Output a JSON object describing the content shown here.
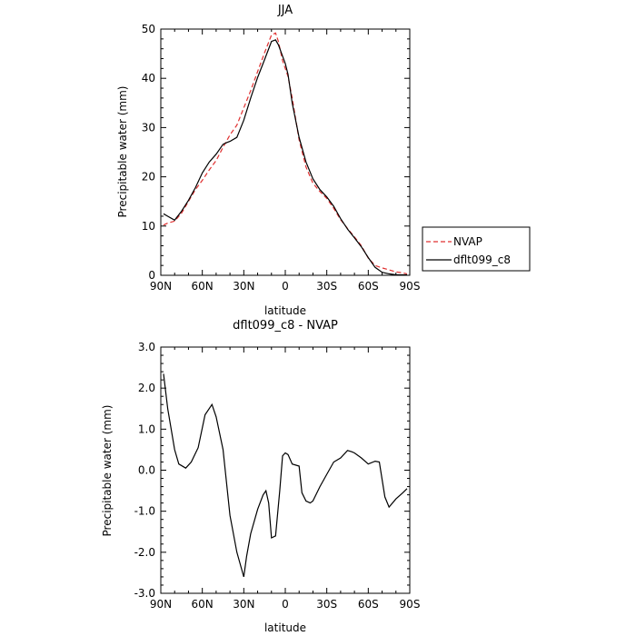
{
  "chart_data": [
    {
      "type": "line",
      "title": "JJA",
      "xlabel": "latitude",
      "ylabel": "Precipitable water (mm)",
      "xlim": [
        90,
        -90
      ],
      "ylim": [
        0,
        50
      ],
      "x_ticks": [
        90,
        60,
        30,
        0,
        -30,
        -60,
        -90
      ],
      "x_tick_labels": [
        "90N",
        "60N",
        "30N",
        "0",
        "30S",
        "60S",
        "90S"
      ],
      "y_ticks": [
        0,
        10,
        20,
        30,
        40,
        50
      ],
      "y_tick_labels": [
        "0",
        "10",
        "20",
        "30",
        "40",
        "50"
      ],
      "legend": "right",
      "series": [
        {
          "name": "NVAP",
          "color": "#e03030",
          "dash": "dashed",
          "x": [
            88,
            85,
            80,
            75,
            70,
            65,
            60,
            55,
            50,
            45,
            40,
            35,
            30,
            25,
            20,
            15,
            10,
            7,
            5,
            2,
            0,
            -2,
            -5,
            -10,
            -15,
            -20,
            -25,
            -30,
            -35,
            -40,
            -45,
            -50,
            -55,
            -60,
            -65,
            -70,
            -75,
            -80,
            -85,
            -88
          ],
          "y": [
            10.2,
            10.6,
            11.0,
            12.6,
            15.0,
            17.4,
            19.3,
            21.4,
            23.3,
            26.0,
            28.5,
            30.5,
            34.0,
            37.5,
            41.4,
            45.2,
            48.8,
            49.2,
            47.5,
            43.6,
            42.0,
            40.4,
            36.0,
            27.5,
            22.0,
            18.7,
            17.0,
            15.6,
            13.6,
            11.3,
            9.5,
            7.8,
            6.0,
            3.5,
            2.0,
            1.5,
            1.1,
            0.7,
            0.5,
            0.3
          ]
        },
        {
          "name": "dflt099_c8",
          "color": "#000000",
          "dash": "solid",
          "x": [
            88,
            85,
            80,
            75,
            70,
            65,
            60,
            55,
            50,
            45,
            42,
            40,
            35,
            30,
            25,
            20,
            15,
            10,
            7,
            5,
            2,
            0,
            -2,
            -5,
            -10,
            -15,
            -20,
            -25,
            -30,
            -35,
            -40,
            -45,
            -50,
            -55,
            -60,
            -65,
            -70,
            -75,
            -80,
            -85,
            -88
          ],
          "y": [
            12.5,
            12.0,
            11.2,
            13.0,
            15.2,
            17.8,
            20.8,
            23.0,
            24.6,
            26.6,
            27.0,
            27.2,
            28.0,
            31.5,
            36.0,
            40.2,
            43.8,
            47.5,
            47.8,
            46.8,
            44.5,
            43.0,
            40.8,
            35.0,
            28.0,
            23.0,
            19.6,
            17.4,
            15.9,
            14.0,
            11.5,
            9.4,
            7.6,
            5.8,
            3.6,
            1.6,
            0.6,
            0.3,
            0.1,
            0.1,
            0.1
          ]
        }
      ]
    },
    {
      "type": "line",
      "title": "dflt099_c8 - NVAP",
      "xlabel": "latitude",
      "ylabel": "Precipitable water (mm)",
      "xlim": [
        90,
        -90
      ],
      "ylim": [
        -3.0,
        3.0
      ],
      "x_ticks": [
        90,
        60,
        30,
        0,
        -30,
        -60,
        -90
      ],
      "x_tick_labels": [
        "90N",
        "60N",
        "30N",
        "0",
        "30S",
        "60S",
        "90S"
      ],
      "y_ticks": [
        -3,
        -2,
        -1,
        0,
        1,
        2,
        3
      ],
      "y_tick_labels": [
        "-3.0",
        "-2.0",
        "-1.0",
        "0.0",
        "1.0",
        "2.0",
        "3.0"
      ],
      "series": [
        {
          "color": "#000000",
          "dash": "solid",
          "x": [
            88,
            85,
            80,
            77,
            72,
            68,
            63,
            58,
            53,
            50,
            45,
            40,
            35,
            30,
            28,
            25,
            20,
            16,
            14,
            12,
            10,
            7,
            4,
            2,
            0,
            -2,
            -5,
            -10,
            -12,
            -15,
            -18,
            -20,
            -25,
            -30,
            -35,
            -40,
            -45,
            -48,
            -50,
            -55,
            -60,
            -65,
            -68,
            -72,
            -75,
            -80,
            -85,
            -88
          ],
          "y": [
            2.35,
            1.5,
            0.5,
            0.15,
            0.05,
            0.2,
            0.55,
            1.35,
            1.6,
            1.3,
            0.5,
            -1.1,
            -2.0,
            -2.6,
            -2.1,
            -1.55,
            -0.95,
            -0.6,
            -0.5,
            -0.8,
            -1.65,
            -1.6,
            -0.5,
            0.35,
            0.42,
            0.38,
            0.15,
            0.1,
            -0.55,
            -0.75,
            -0.8,
            -0.75,
            -0.4,
            -0.1,
            0.2,
            0.3,
            0.48,
            0.45,
            0.42,
            0.3,
            0.15,
            0.22,
            0.2,
            -0.65,
            -0.9,
            -0.7,
            -0.55,
            -0.45
          ]
        }
      ]
    }
  ]
}
